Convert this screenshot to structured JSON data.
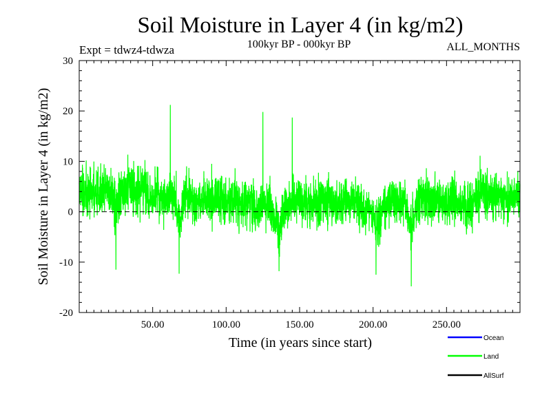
{
  "chart_data": {
    "type": "line",
    "title": "Soil Moisture in Layer 4 (in kg/m2)",
    "subtitle": "100kyr BP - 000kyr BP",
    "experiment_label": "Expt = tdwz4-tdwza",
    "period_label": "ALL_MONTHS",
    "xlabel": "Time (in years since start)",
    "ylabel": "Soil Moisture in Layer 4 (in kg/m2)",
    "xlim": [
      0,
      300
    ],
    "ylim": [
      -20,
      30
    ],
    "x_ticks": [
      50,
      100,
      150,
      200,
      250
    ],
    "x_tick_labels": [
      "50.00",
      "100.00",
      "150.00",
      "200.00",
      "250.00"
    ],
    "y_ticks": [
      -20,
      -10,
      0,
      10,
      20,
      30
    ],
    "y_tick_labels": [
      "-20",
      "-10",
      "0",
      "10",
      "20",
      "30"
    ],
    "reference_line": {
      "y": 0,
      "style": "dashed"
    },
    "legend_position": "bottom-right",
    "series": [
      {
        "name": "Ocean",
        "color": "#0000ff",
        "values": []
      },
      {
        "name": "Land",
        "color": "#00ff00",
        "approx_range": [
          -14.8,
          21.2
        ],
        "mean": 3.5,
        "notable_points": [
          {
            "x": 62,
            "y": 21.2
          },
          {
            "x": 125,
            "y": 19.8
          },
          {
            "x": 145,
            "y": 18.7
          },
          {
            "x": 226,
            "y": -14.8
          },
          {
            "x": 202,
            "y": -12.5
          },
          {
            "x": 68,
            "y": -12.3
          },
          {
            "x": 136,
            "y": -11.8
          },
          {
            "x": 25,
            "y": -11.5
          }
        ]
      },
      {
        "name": "AllSurf",
        "color": "#000000",
        "values": []
      }
    ]
  }
}
